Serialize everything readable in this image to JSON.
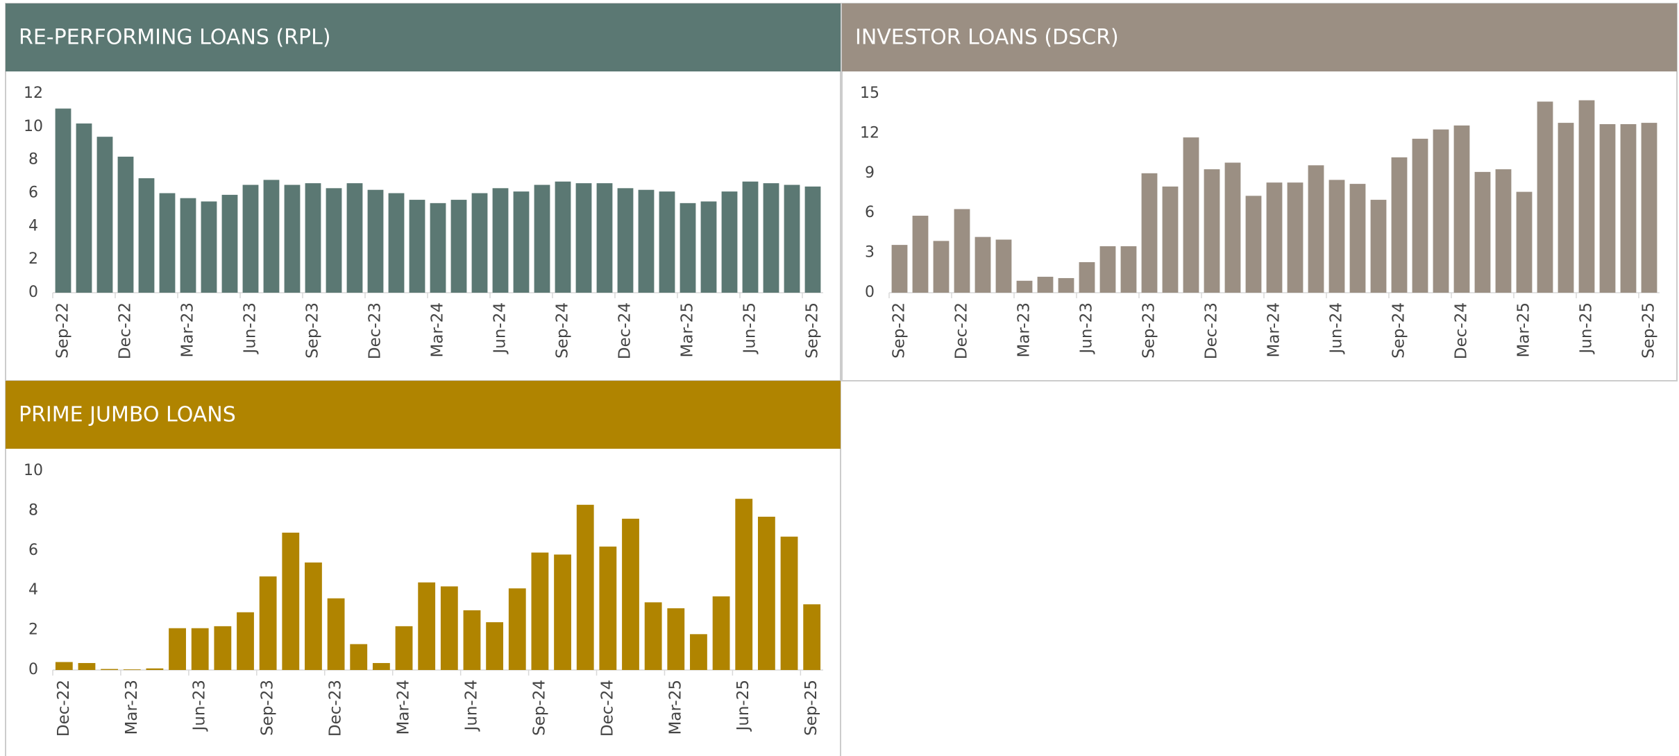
{
  "chart_data": [
    {
      "type": "bar",
      "title": "RE-PERFORMING LOANS (RPL)",
      "color": "#5b7873",
      "categories": [
        "Sep-22",
        null,
        null,
        "Dec-22",
        null,
        null,
        "Mar-23",
        null,
        null,
        "Jun-23",
        null,
        null,
        "Sep-23",
        null,
        null,
        "Dec-23",
        null,
        null,
        "Mar-24",
        null,
        null,
        "Jun-24",
        null,
        null,
        "Sep-24",
        null,
        null,
        "Dec-24",
        null,
        null,
        "Mar-25",
        null,
        null,
        "Jun-25",
        null,
        null,
        "Sep-25"
      ],
      "values": [
        11.1,
        10.2,
        9.4,
        8.2,
        6.9,
        6.0,
        5.7,
        5.5,
        5.9,
        6.5,
        6.8,
        6.5,
        6.6,
        6.3,
        6.6,
        6.2,
        6.0,
        5.6,
        5.4,
        5.6,
        6.0,
        6.3,
        6.1,
        6.5,
        6.7,
        6.6,
        6.6,
        6.3,
        6.2,
        6.1,
        5.4,
        5.5,
        6.1,
        6.7,
        6.6,
        6.5,
        6.4
      ],
      "ylim": [
        0,
        12
      ],
      "yticks": [
        0,
        2,
        4,
        6,
        8,
        10,
        12
      ]
    },
    {
      "type": "bar",
      "title": "INVESTOR LOANS (DSCR)",
      "color": "#9b8f83",
      "categories": [
        "Sep-22",
        null,
        null,
        "Dec-22",
        null,
        null,
        "Mar-23",
        null,
        null,
        "Jun-23",
        null,
        null,
        "Sep-23",
        null,
        null,
        "Dec-23",
        null,
        null,
        "Mar-24",
        null,
        null,
        "Jun-24",
        null,
        null,
        "Sep-24",
        null,
        null,
        "Dec-24",
        null,
        null,
        "Mar-25",
        null,
        null,
        "Jun-25",
        null,
        null,
        "Sep-25"
      ],
      "values": [
        3.6,
        5.8,
        3.9,
        6.3,
        4.2,
        4.0,
        0.9,
        1.2,
        1.1,
        2.3,
        3.5,
        3.5,
        9.0,
        8.0,
        11.7,
        9.3,
        9.8,
        7.3,
        8.3,
        8.3,
        9.6,
        8.5,
        8.2,
        7.0,
        10.2,
        11.6,
        12.3,
        12.6,
        9.1,
        9.3,
        7.6,
        14.4,
        12.8,
        14.5,
        12.7,
        12.7,
        12.8
      ],
      "ylim": [
        0,
        15
      ],
      "yticks": [
        0,
        3,
        6,
        9,
        12,
        15
      ]
    },
    {
      "type": "bar",
      "title": "PRIME JUMBO LOANS",
      "color": "#b08400",
      "categories": [
        "Dec-22",
        null,
        null,
        "Mar-23",
        null,
        null,
        "Jun-23",
        null,
        null,
        "Sep-23",
        null,
        null,
        "Dec-23",
        null,
        null,
        "Mar-24",
        null,
        null,
        "Jun-24",
        null,
        null,
        "Sep-24",
        null,
        null,
        "Dec-24",
        null,
        null,
        "Mar-25",
        null,
        null,
        "Jun-25",
        null,
        null,
        "Sep-25"
      ],
      "values": [
        0.4,
        0.35,
        0.05,
        0.03,
        0.08,
        2.1,
        2.1,
        2.2,
        2.9,
        4.7,
        6.9,
        5.4,
        3.6,
        1.3,
        0.35,
        2.2,
        4.4,
        4.2,
        3.0,
        2.4,
        4.1,
        5.9,
        5.8,
        8.3,
        6.2,
        7.6,
        3.4,
        3.1,
        1.8,
        3.7,
        8.6,
        7.7,
        6.7,
        3.3
      ],
      "ylim": [
        0,
        10
      ],
      "yticks": [
        0,
        2,
        4,
        6,
        8,
        10
      ]
    }
  ]
}
